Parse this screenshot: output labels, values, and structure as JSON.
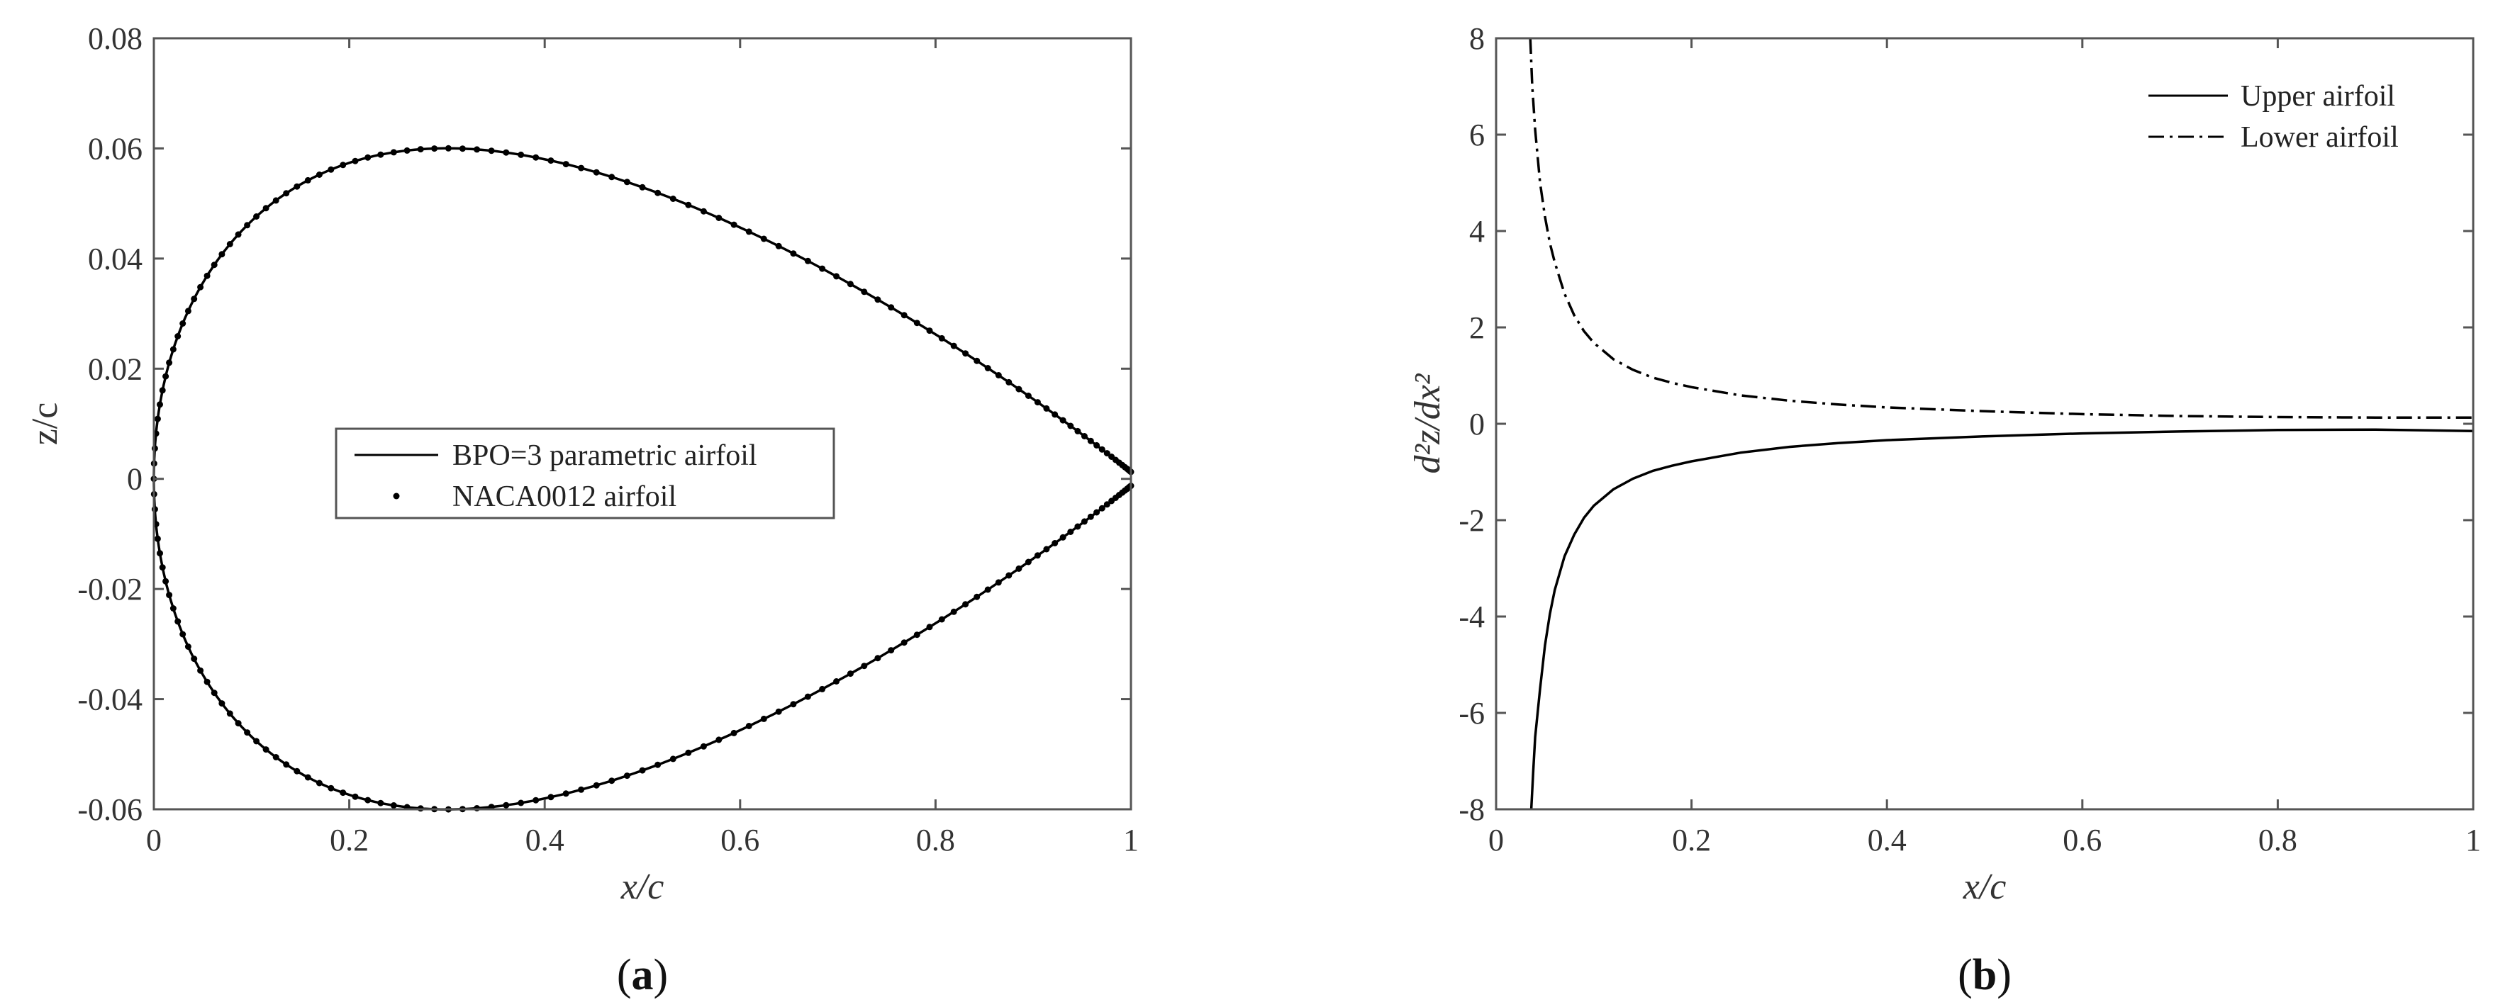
{
  "chart_data": [
    {
      "panel": "(a)",
      "panel_letter": "a",
      "type": "line",
      "xlabel": "x/c",
      "ylabel": "z/c",
      "xlim": [
        0,
        1
      ],
      "ylim": [
        -0.06,
        0.08
      ],
      "xticks": [
        0,
        0.2,
        0.4,
        0.6,
        0.8,
        1
      ],
      "xtick_labels": [
        "0",
        "0.2",
        "0.4",
        "0.6",
        "0.8",
        "1"
      ],
      "yticks": [
        -0.06,
        -0.04,
        -0.02,
        0,
        0.02,
        0.04,
        0.06,
        0.08
      ],
      "ytick_labels": [
        "-0.06",
        "-0.04",
        "-0.02",
        "0",
        "0.02",
        "0.04",
        "0.06",
        "0.08"
      ],
      "grid": false,
      "legend_position": "center-left",
      "series": [
        {
          "name": "BPO=3 parametric airfoil",
          "style": "solid-line",
          "color": "#000000",
          "function": "naca0012-symmetric",
          "thickness": 0.12
        },
        {
          "name": "NACA0012 airfoil",
          "style": "dot-markers",
          "color": "#000000",
          "function": "naca0012-symmetric",
          "thickness": 0.12
        }
      ]
    },
    {
      "panel": "(b)",
      "panel_letter": "b",
      "type": "line",
      "xlabel": "x/c",
      "ylabel": "d²z/dx²",
      "xlim": [
        0,
        1
      ],
      "ylim": [
        -8,
        8
      ],
      "xticks": [
        0,
        0.2,
        0.4,
        0.6,
        0.8,
        1
      ],
      "xtick_labels": [
        "0",
        "0.2",
        "0.4",
        "0.6",
        "0.8",
        "1"
      ],
      "yticks": [
        -8,
        -6,
        -4,
        -2,
        0,
        2,
        4,
        6,
        8
      ],
      "ytick_labels": [
        "-8",
        "-6",
        "-4",
        "-2",
        "0",
        "2",
        "4",
        "6",
        "8"
      ],
      "grid": false,
      "legend_position": "top-right",
      "series": [
        {
          "name": "Upper airfoil",
          "style": "solid",
          "color": "#000000",
          "x": [
            0.036,
            0.038,
            0.04,
            0.045,
            0.05,
            0.055,
            0.06,
            0.07,
            0.08,
            0.09,
            0.1,
            0.12,
            0.14,
            0.16,
            0.18,
            0.2,
            0.25,
            0.3,
            0.35,
            0.4,
            0.5,
            0.6,
            0.7,
            0.8,
            0.9,
            1.0
          ],
          "y": [
            -8.0,
            -7.2,
            -6.5,
            -5.5,
            -4.6,
            -3.95,
            -3.45,
            -2.75,
            -2.3,
            -1.95,
            -1.7,
            -1.36,
            -1.14,
            -0.98,
            -0.87,
            -0.78,
            -0.6,
            -0.48,
            -0.4,
            -0.34,
            -0.26,
            -0.2,
            -0.16,
            -0.13,
            -0.12,
            -0.15
          ]
        },
        {
          "name": "Lower airfoil",
          "style": "dash-dot",
          "color": "#000000",
          "x": [
            0.035,
            0.037,
            0.04,
            0.045,
            0.05,
            0.055,
            0.06,
            0.07,
            0.08,
            0.09,
            0.1,
            0.12,
            0.14,
            0.16,
            0.18,
            0.2,
            0.25,
            0.3,
            0.35,
            0.4,
            0.5,
            0.6,
            0.7,
            0.8,
            0.9,
            1.0
          ],
          "y": [
            8.0,
            7.0,
            6.1,
            5.0,
            4.3,
            3.75,
            3.35,
            2.7,
            2.25,
            1.92,
            1.68,
            1.34,
            1.12,
            0.96,
            0.85,
            0.76,
            0.59,
            0.48,
            0.4,
            0.34,
            0.26,
            0.2,
            0.16,
            0.14,
            0.13,
            0.13
          ]
        }
      ]
    }
  ]
}
